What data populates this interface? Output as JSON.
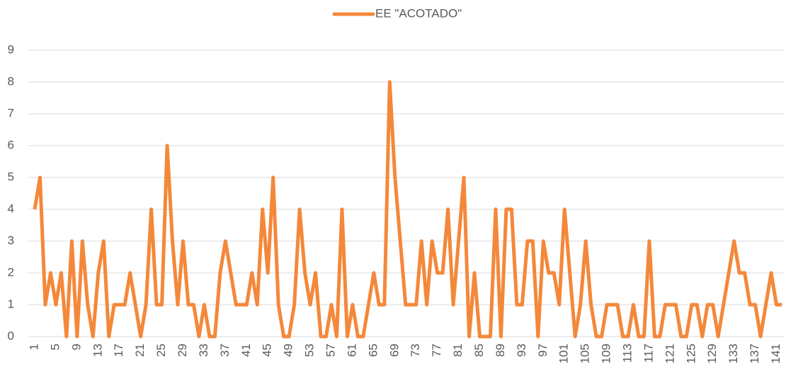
{
  "chart_data": {
    "type": "line",
    "categories": [
      "1",
      null,
      null,
      null,
      "5",
      null,
      null,
      null,
      "9",
      null,
      null,
      null,
      "13",
      null,
      null,
      null,
      "17",
      null,
      null,
      null,
      "21",
      null,
      null,
      null,
      "25",
      null,
      null,
      null,
      "29",
      null,
      null,
      null,
      "33",
      null,
      null,
      null,
      "37",
      null,
      null,
      null,
      "41",
      null,
      null,
      null,
      "45",
      null,
      null,
      null,
      "49",
      null,
      null,
      null,
      "53",
      null,
      null,
      null,
      "57",
      null,
      null,
      null,
      "61",
      null,
      null,
      null,
      "65",
      null,
      null,
      null,
      "69",
      null,
      null,
      null,
      "73",
      null,
      null,
      null,
      "77",
      null,
      null,
      null,
      "81",
      null,
      null,
      null,
      "85",
      null,
      null,
      null,
      "89",
      null,
      null,
      null,
      "93",
      null,
      null,
      null,
      "97",
      null,
      null,
      null,
      "101",
      null,
      null,
      null,
      "105",
      null,
      null,
      null,
      "109",
      null,
      null,
      null,
      "113",
      null,
      null,
      null,
      "117",
      null,
      null,
      null,
      "121",
      null,
      null,
      null,
      "125",
      null,
      null,
      null,
      "129",
      null,
      null,
      null,
      "133",
      null,
      null,
      null,
      "137",
      null,
      null,
      null,
      "141",
      null
    ],
    "series": [
      {
        "name": "EE \"ACOTADO\"",
        "color": "#F4883A",
        "values": [
          4,
          5,
          1,
          2,
          1,
          2,
          0,
          3,
          0,
          3,
          1,
          0,
          2,
          3,
          0,
          1,
          1,
          1,
          2,
          1,
          0,
          1,
          4,
          1,
          1,
          6,
          3,
          1,
          3,
          1,
          1,
          0,
          1,
          0,
          0,
          2,
          3,
          2,
          1,
          1,
          1,
          2,
          1,
          4,
          2,
          5,
          1,
          0,
          0,
          1,
          4,
          2,
          1,
          2,
          0,
          0,
          1,
          0,
          4,
          0,
          1,
          0,
          0,
          1,
          2,
          1,
          1,
          8,
          5,
          3,
          1,
          1,
          1,
          3,
          1,
          3,
          2,
          2,
          4,
          1,
          3,
          5,
          0,
          2,
          0,
          0,
          0,
          4,
          0,
          4,
          4,
          1,
          1,
          3,
          3,
          0,
          3,
          2,
          2,
          1,
          4,
          2,
          0,
          1,
          3,
          1,
          0,
          0,
          1,
          1,
          1,
          0,
          0,
          1,
          0,
          0,
          3,
          0,
          0,
          1,
          1,
          1,
          0,
          0,
          1,
          1,
          0,
          1,
          1,
          0,
          1,
          2,
          3,
          2,
          2,
          1,
          1,
          0,
          1,
          2,
          1,
          1
        ]
      }
    ],
    "ylim": [
      0,
      9
    ],
    "yticks": [
      0,
      1,
      2,
      3,
      4,
      5,
      6,
      7,
      8,
      9
    ],
    "grid": true,
    "legend": "top"
  }
}
